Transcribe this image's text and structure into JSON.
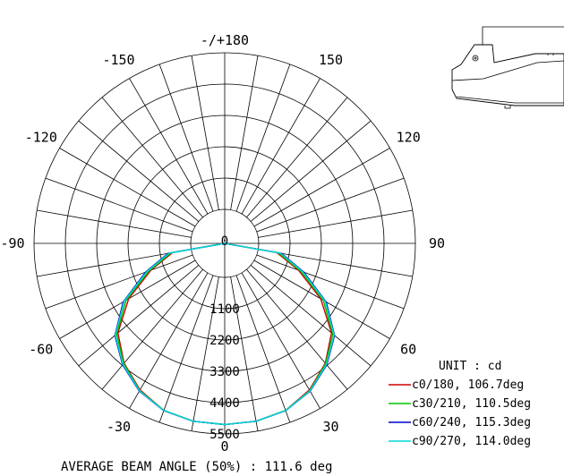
{
  "chart_data": {
    "type": "polar",
    "title": "",
    "unit_label": "UNIT : cd",
    "radial_max": 5500,
    "radial_ticks": [
      "0",
      "1100",
      "2200",
      "3300",
      "4400",
      "5500"
    ],
    "angle_labels": [
      {
        "angle": 180,
        "label": "-/+180"
      },
      {
        "angle": 150,
        "label": "150"
      },
      {
        "angle": -150,
        "label": "-150"
      },
      {
        "angle": 120,
        "label": "120"
      },
      {
        "angle": -120,
        "label": "-120"
      },
      {
        "angle": 90,
        "label": "90"
      },
      {
        "angle": -90,
        "label": "-90"
      },
      {
        "angle": 60,
        "label": "60"
      },
      {
        "angle": -60,
        "label": "-60"
      },
      {
        "angle": 30,
        "label": "30"
      },
      {
        "angle": -30,
        "label": "-30"
      },
      {
        "angle": 0,
        "label": "0"
      }
    ],
    "gamma": [
      -90,
      -80,
      -70,
      -60,
      -50,
      -40,
      -30,
      -20,
      -10,
      0,
      10,
      20,
      30,
      40,
      50,
      60,
      70,
      80,
      90
    ],
    "series": [
      {
        "name": "c0/180, 106.7deg",
        "color": "#d00000",
        "values": [
          0,
          660,
          1560,
          2700,
          3700,
          4300,
          4750,
          5050,
          5150,
          5170,
          5150,
          5050,
          4750,
          4300,
          3700,
          2700,
          1560,
          660,
          0
        ]
      },
      {
        "name": "c30/210, 110.5deg",
        "color": "#00c000",
        "values": [
          0,
          720,
          1640,
          2800,
          3760,
          4320,
          4780,
          5050,
          5150,
          5170,
          5150,
          5050,
          4780,
          4320,
          3760,
          2800,
          1640,
          720,
          0
        ]
      },
      {
        "name": "c60/240, 115.3deg",
        "color": "#0000cc",
        "values": [
          0,
          820,
          1760,
          2920,
          3840,
          4380,
          4800,
          5060,
          5150,
          5170,
          5150,
          5060,
          4800,
          4380,
          3840,
          2920,
          1760,
          820,
          0
        ]
      },
      {
        "name": "c90/270, 114.0deg",
        "color": "#00d8d8",
        "values": [
          0,
          790,
          1720,
          2880,
          3820,
          4360,
          4790,
          5055,
          5150,
          5170,
          5150,
          5055,
          4790,
          4360,
          3820,
          2880,
          1720,
          790,
          0
        ]
      }
    ],
    "footer": "AVERAGE BEAM ANGLE (50%) : 111.6 deg"
  }
}
